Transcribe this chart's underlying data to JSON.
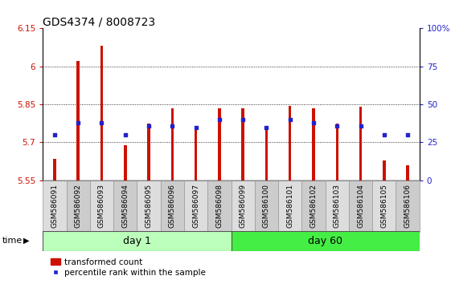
{
  "title": "GDS4374 / 8008723",
  "samples": [
    "GSM586091",
    "GSM586092",
    "GSM586093",
    "GSM586094",
    "GSM586095",
    "GSM586096",
    "GSM586097",
    "GSM586098",
    "GSM586099",
    "GSM586100",
    "GSM586101",
    "GSM586102",
    "GSM586103",
    "GSM586104",
    "GSM586105",
    "GSM586106"
  ],
  "bar_values": [
    5.635,
    6.02,
    6.08,
    5.69,
    5.775,
    5.835,
    5.755,
    5.835,
    5.835,
    5.755,
    5.845,
    5.835,
    5.775,
    5.84,
    5.63,
    5.61
  ],
  "dot_values": [
    30,
    38,
    38,
    30,
    36,
    36,
    35,
    40,
    40,
    35,
    40,
    38,
    36,
    36,
    30,
    30
  ],
  "ymin": 5.55,
  "ymax": 6.15,
  "yticks": [
    5.55,
    5.7,
    5.85,
    6.0,
    6.15
  ],
  "ytick_labels": [
    "5.55",
    "5.7",
    "5.85",
    "6",
    "6.15"
  ],
  "y2ticks": [
    0,
    25,
    50,
    75,
    100
  ],
  "y2tick_labels": [
    "0",
    "25",
    "50",
    "75",
    "100%"
  ],
  "grid_lines": [
    5.7,
    5.85,
    6.0
  ],
  "bar_color": "#cc1100",
  "dot_color": "#2222cc",
  "bar_width": 0.12,
  "day1_label": "day 1",
  "day60_label": "day 60",
  "group1_color": "#bbffbb",
  "group2_color": "#44ee44",
  "xlabel": "time",
  "legend_bar": "transformed count",
  "legend_dot": "percentile rank within the sample",
  "left_label_color": "#cc1100",
  "right_label_color": "#2222cc",
  "title_fontsize": 10,
  "tick_fontsize": 7.5,
  "label_fontsize": 6.5,
  "base": 5.55,
  "box_colors": [
    "#dddddd",
    "#cccccc"
  ]
}
